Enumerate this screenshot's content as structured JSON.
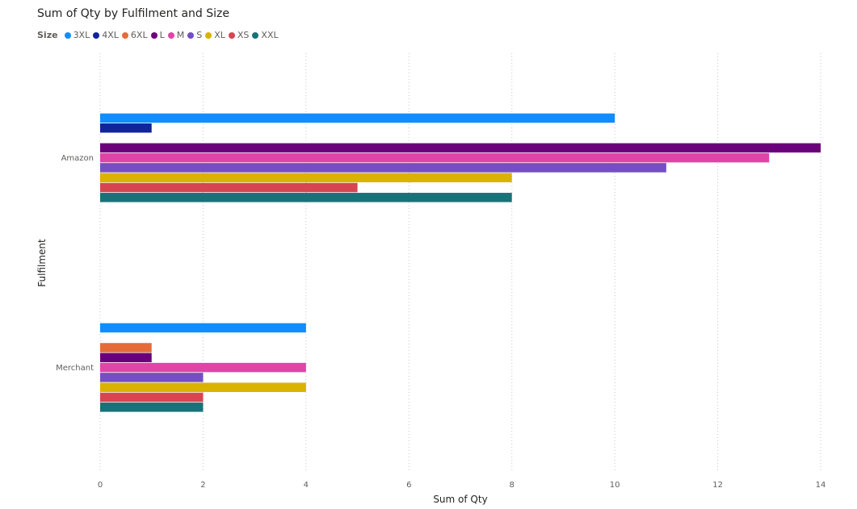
{
  "chart_data": {
    "type": "bar",
    "orientation": "horizontal",
    "title": "Sum of Qty by Fulfilment and Size",
    "legend_title": "Size",
    "legend_position": "top-left",
    "xlabel": "Sum of Qty",
    "ylabel": "Fulfilment",
    "xlim": [
      0,
      14
    ],
    "xticks": [
      0,
      2,
      4,
      6,
      8,
      10,
      12,
      14
    ],
    "grid": "vertical-dotted",
    "categories": [
      "Amazon",
      "Merchant"
    ],
    "series": [
      {
        "name": "3XL",
        "color": "#118dff",
        "values": [
          10,
          4
        ]
      },
      {
        "name": "4XL",
        "color": "#12239e",
        "values": [
          1,
          null
        ]
      },
      {
        "name": "6XL",
        "color": "#e66c37",
        "values": [
          null,
          1
        ]
      },
      {
        "name": "L",
        "color": "#6b007b",
        "values": [
          14,
          1
        ]
      },
      {
        "name": "M",
        "color": "#e044a7",
        "values": [
          13,
          4
        ]
      },
      {
        "name": "S",
        "color": "#744ec2",
        "values": [
          11,
          2
        ]
      },
      {
        "name": "XL",
        "color": "#d9b300",
        "values": [
          8,
          4
        ]
      },
      {
        "name": "XS",
        "color": "#d64550",
        "values": [
          5,
          2
        ]
      },
      {
        "name": "XXL",
        "color": "#197278",
        "values": [
          8,
          2
        ]
      }
    ]
  }
}
